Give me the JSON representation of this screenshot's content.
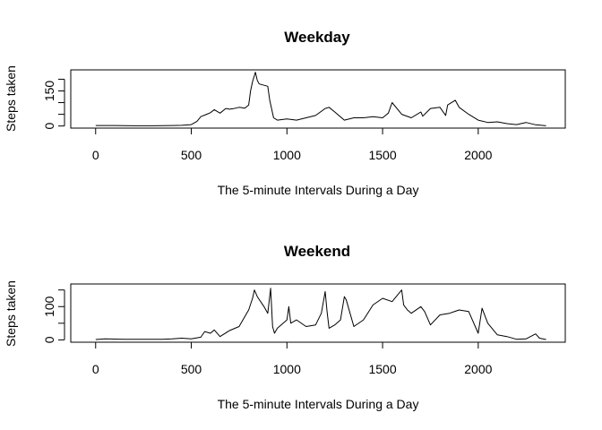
{
  "chart_data": [
    {
      "type": "line",
      "title": "Weekday",
      "xlabel": "The 5-minute Intervals During a Day",
      "ylabel": "Steps taken",
      "xlim": [
        -130,
        2455
      ],
      "ylim": [
        -9,
        240
      ],
      "xticks": [
        0,
        500,
        1000,
        1500,
        2000
      ],
      "yticks": [
        0,
        50,
        100,
        150,
        200
      ],
      "ytick_labels": [
        "0",
        "",
        "",
        "150",
        ""
      ],
      "grid": false,
      "series": [
        {
          "x": [
            0,
            100,
            200,
            300,
            400,
            450,
            500,
            530,
            550,
            580,
            600,
            620,
            650,
            680,
            700,
            720,
            750,
            780,
            800,
            810,
            820,
            835,
            845,
            855,
            900,
            910,
            930,
            950,
            1000,
            1050,
            1100,
            1150,
            1200,
            1220,
            1250,
            1300,
            1350,
            1400,
            1450,
            1500,
            1530,
            1550,
            1600,
            1650,
            1700,
            1710,
            1750,
            1800,
            1830,
            1840,
            1880,
            1900,
            1950,
            2000,
            2050,
            2100,
            2150,
            2200,
            2250,
            2300,
            2355
          ],
          "y": [
            2,
            2,
            1,
            1,
            2,
            3,
            6,
            20,
            40,
            50,
            57,
            70,
            55,
            75,
            72,
            74,
            80,
            76,
            90,
            150,
            190,
            230,
            195,
            180,
            170,
            110,
            35,
            25,
            30,
            25,
            35,
            45,
            75,
            80,
            60,
            25,
            35,
            35,
            40,
            35,
            55,
            100,
            50,
            35,
            60,
            42,
            75,
            80,
            45,
            90,
            110,
            80,
            50,
            25,
            15,
            18,
            10,
            6,
            15,
            5,
            1
          ]
        }
      ]
    },
    {
      "type": "line",
      "title": "Weekend",
      "xlabel": "The 5-minute Intervals During a Day",
      "ylabel": "Steps taken",
      "xlim": [
        -130,
        2455
      ],
      "ylim": [
        -7,
        168
      ],
      "xticks": [
        0,
        500,
        1000,
        1500,
        2000
      ],
      "yticks": [
        0,
        50,
        100,
        150
      ],
      "ytick_labels": [
        "0",
        "",
        "100",
        ""
      ],
      "grid": false,
      "series": [
        {
          "x": [
            0,
            50,
            150,
            250,
            350,
            400,
            450,
            500,
            550,
            570,
            600,
            620,
            650,
            700,
            750,
            780,
            800,
            820,
            830,
            845,
            880,
            900,
            915,
            925,
            935,
            950,
            1000,
            1010,
            1020,
            1050,
            1100,
            1150,
            1180,
            1200,
            1210,
            1220,
            1250,
            1280,
            1300,
            1310,
            1350,
            1400,
            1450,
            1500,
            1550,
            1600,
            1610,
            1630,
            1650,
            1700,
            1720,
            1750,
            1800,
            1850,
            1900,
            1950,
            2000,
            2020,
            2050,
            2100,
            2150,
            2200,
            2250,
            2300,
            2320,
            2355
          ],
          "y": [
            1,
            3,
            2,
            2,
            2,
            3,
            5,
            3,
            8,
            25,
            20,
            30,
            10,
            28,
            40,
            70,
            90,
            125,
            150,
            130,
            100,
            80,
            155,
            40,
            20,
            35,
            60,
            100,
            50,
            60,
            40,
            45,
            80,
            145,
            85,
            35,
            45,
            60,
            130,
            120,
            40,
            60,
            105,
            125,
            115,
            150,
            105,
            90,
            80,
            100,
            85,
            45,
            75,
            80,
            90,
            85,
            20,
            95,
            50,
            15,
            10,
            2,
            3,
            18,
            5,
            1
          ]
        }
      ]
    }
  ]
}
